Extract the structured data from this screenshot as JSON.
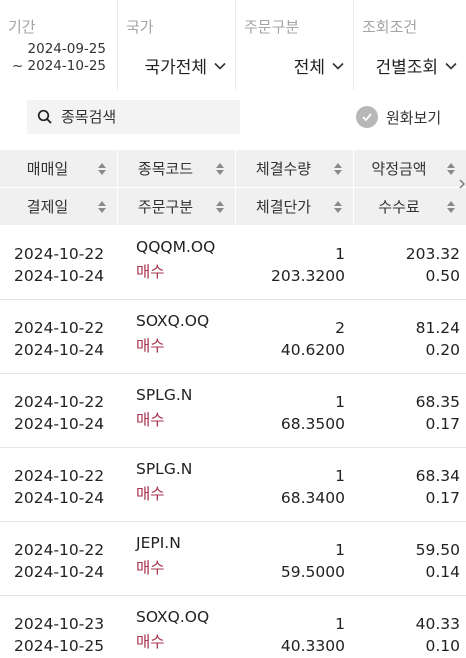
{
  "filters": {
    "period": {
      "label": "기간",
      "from": "2024-09-25",
      "to": "~ 2024-10-25"
    },
    "country": {
      "label": "국가",
      "value": "국가전체"
    },
    "order_type": {
      "label": "주문구분",
      "value": "전체"
    },
    "query_cond": {
      "label": "조회조건",
      "value": "건별조회"
    }
  },
  "search": {
    "placeholder": "종목검색"
  },
  "fx_toggle": {
    "label": "원화보기",
    "checked": true
  },
  "columns": {
    "row1": [
      "매매일",
      "종목코드",
      "체결수량",
      "약정금액"
    ],
    "row2": [
      "결제일",
      "주문구분",
      "체결단가",
      "수수료"
    ]
  },
  "colors": {
    "buy": "#a8324f",
    "header_bg": "#f0f0f0"
  },
  "trades": [
    {
      "trade_date": "2024-10-22",
      "settle_date": "2024-10-24",
      "code": "QQQM.OQ",
      "side": "매수",
      "qty": "1",
      "price": "203.3200",
      "amount": "203.32",
      "fee": "0.50"
    },
    {
      "trade_date": "2024-10-22",
      "settle_date": "2024-10-24",
      "code": "SOXQ.OQ",
      "side": "매수",
      "qty": "2",
      "price": "40.6200",
      "amount": "81.24",
      "fee": "0.20"
    },
    {
      "trade_date": "2024-10-22",
      "settle_date": "2024-10-24",
      "code": "SPLG.N",
      "side": "매수",
      "qty": "1",
      "price": "68.3500",
      "amount": "68.35",
      "fee": "0.17"
    },
    {
      "trade_date": "2024-10-22",
      "settle_date": "2024-10-24",
      "code": "SPLG.N",
      "side": "매수",
      "qty": "1",
      "price": "68.3400",
      "amount": "68.34",
      "fee": "0.17"
    },
    {
      "trade_date": "2024-10-22",
      "settle_date": "2024-10-24",
      "code": "JEPI.N",
      "side": "매수",
      "qty": "1",
      "price": "59.5000",
      "amount": "59.50",
      "fee": "0.14"
    },
    {
      "trade_date": "2024-10-23",
      "settle_date": "2024-10-25",
      "code": "SOXQ.OQ",
      "side": "매수",
      "qty": "1",
      "price": "40.3300",
      "amount": "40.33",
      "fee": "0.10"
    }
  ]
}
